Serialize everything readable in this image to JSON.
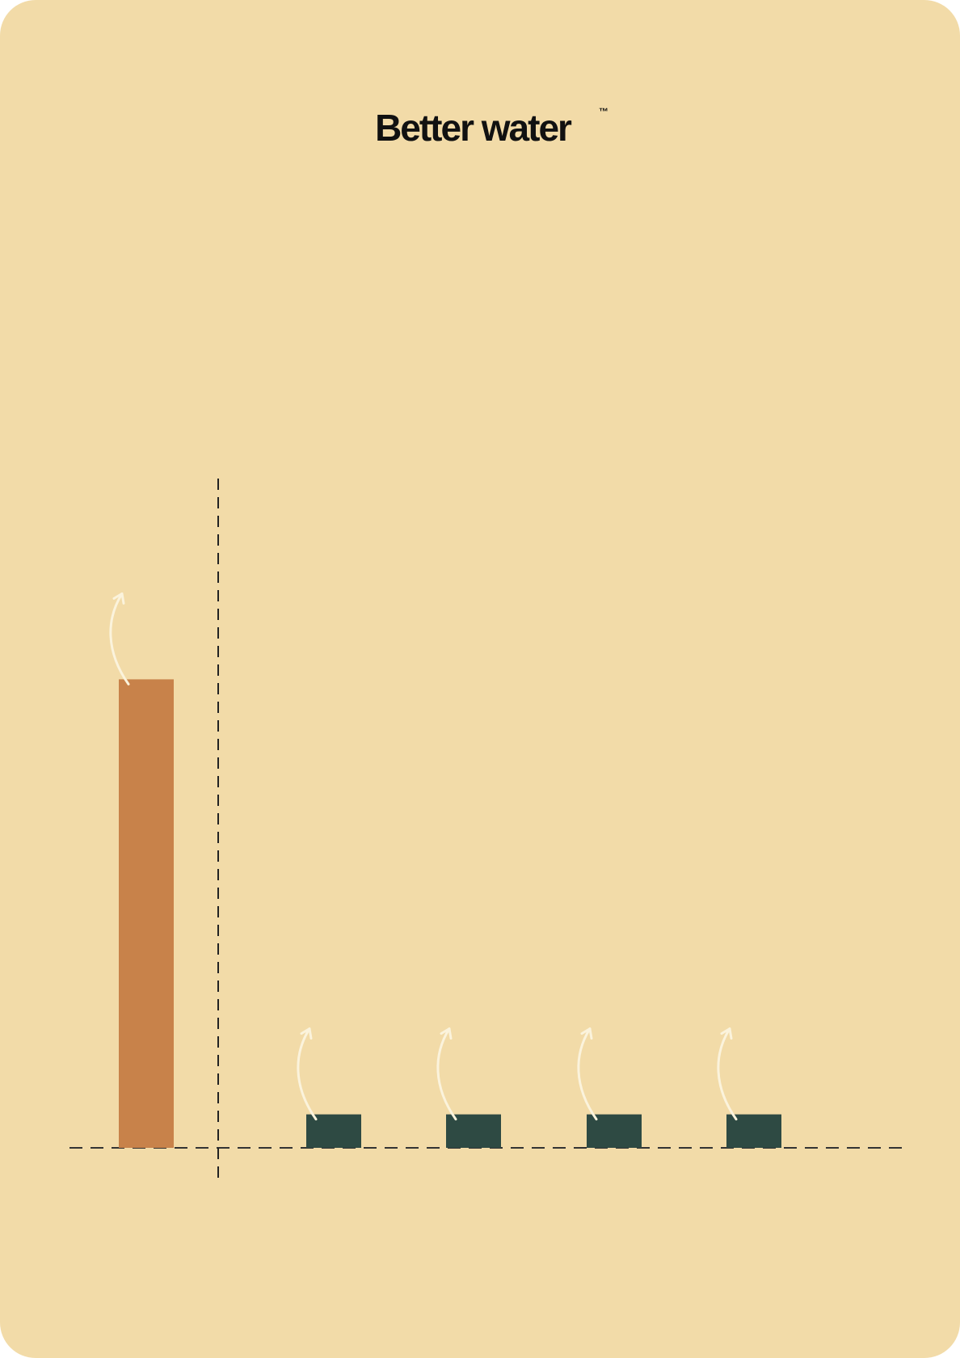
{
  "chart_data": {
    "type": "bar",
    "title": "Better water",
    "title_mark": "™",
    "categories": [
      null,
      null,
      null,
      null,
      null
    ],
    "values": [
      70,
      5,
      5,
      5,
      5
    ],
    "colors": [
      "#c8824a",
      "#2e4a43",
      "#2e4a43",
      "#2e4a43",
      "#2e4a43"
    ],
    "ylim": [
      0,
      100
    ],
    "grid": false
  }
}
